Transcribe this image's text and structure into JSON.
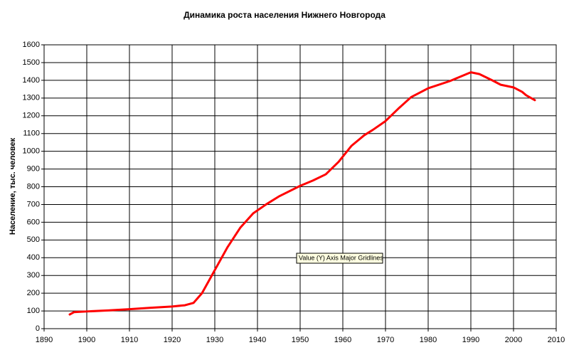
{
  "chart_data": {
    "type": "line",
    "title": "Динамика роста населения Нижнего Новгорода",
    "y_label": "Население, тыс. человек",
    "annotation": "Value (Y) Axis Major Gridlines",
    "x": [
      1896,
      1897,
      1900,
      1905,
      1910,
      1915,
      1920,
      1923,
      1925,
      1927,
      1930,
      1933,
      1936,
      1939,
      1942,
      1945,
      1950,
      1953,
      1956,
      1959,
      1962,
      1965,
      1967,
      1970,
      1973,
      1976,
      1980,
      1985,
      1990,
      1992,
      1995,
      1997,
      2000,
      2002,
      2003,
      2005
    ],
    "series": [
      {
        "name": "Население",
        "color": "#ff0000",
        "values": [
          80,
          93,
          97,
          103,
          110,
          118,
          125,
          132,
          145,
          200,
          330,
          460,
          570,
          650,
          700,
          745,
          805,
          835,
          870,
          940,
          1030,
          1090,
          1120,
          1170,
          1240,
          1305,
          1355,
          1395,
          1445,
          1435,
          1400,
          1375,
          1360,
          1335,
          1315,
          1288
        ]
      }
    ],
    "xlim": [
      1890,
      2010
    ],
    "xticks": [
      1890,
      1900,
      1910,
      1920,
      1930,
      1940,
      1950,
      1960,
      1970,
      1980,
      1990,
      2000,
      2010
    ],
    "ylim": [
      0,
      1600
    ],
    "yticks": [
      0,
      100,
      200,
      300,
      400,
      500,
      600,
      700,
      800,
      900,
      1000,
      1100,
      1200,
      1300,
      1400,
      1500,
      1600
    ],
    "grid": true
  }
}
